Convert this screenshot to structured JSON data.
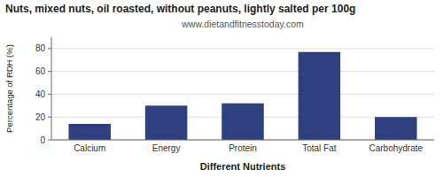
{
  "chart_data": {
    "type": "bar",
    "title": "Nuts, mixed nuts, oil roasted, without peanuts, lightly salted per 100g",
    "subtitle": "www.dietandfitnesstoday.com",
    "categories": [
      "Calcium",
      "Energy",
      "Protein",
      "Total Fat",
      "Carbohydrate"
    ],
    "values": [
      14,
      30,
      32,
      77,
      20
    ],
    "color": "#2e4080",
    "xlabel": "Different Nutrients",
    "ylabel": "Percentage of RDH (%)",
    "ylim": [
      0,
      90
    ],
    "yticks": [
      0,
      20,
      40,
      60,
      80
    ],
    "grid": true
  }
}
